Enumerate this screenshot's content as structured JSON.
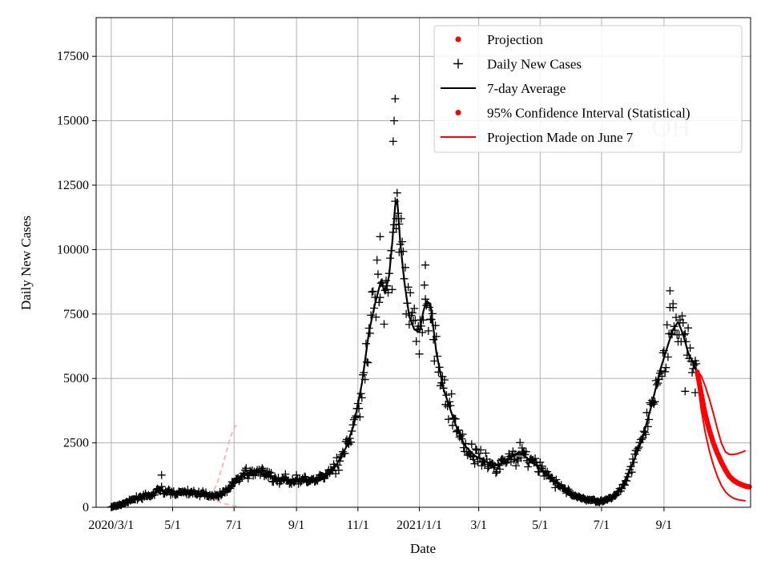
{
  "chart_data": {
    "type": "line",
    "xlabel": "Date",
    "ylabel": "Daily New Cases",
    "watermark": "OH",
    "x_range": [
      "2020-02-15",
      "2021-11-26"
    ],
    "ylim": [
      0,
      19000
    ],
    "yticks": [
      0,
      2500,
      5000,
      7500,
      10000,
      12500,
      15000,
      17500
    ],
    "xticks": [
      {
        "date": "2020-03-01",
        "label": "2020/3/1"
      },
      {
        "date": "2020-05-01",
        "label": "5/1"
      },
      {
        "date": "2020-07-01",
        "label": "7/1"
      },
      {
        "date": "2020-09-01",
        "label": "9/1"
      },
      {
        "date": "2020-11-01",
        "label": "11/1"
      },
      {
        "date": "2021-01-01",
        "label": "2021/1/1"
      },
      {
        "date": "2021-03-01",
        "label": "3/1"
      },
      {
        "date": "2021-05-01",
        "label": "5/1"
      },
      {
        "date": "2021-07-01",
        "label": "7/1"
      },
      {
        "date": "2021-09-01",
        "label": "9/1"
      }
    ],
    "grid": true,
    "legend_position": "top-right",
    "legend": [
      {
        "label": "Projection",
        "marker": "dot",
        "color": "#ff0000"
      },
      {
        "label": "Daily New Cases",
        "marker": "plus",
        "color": "#000000"
      },
      {
        "label": "7-day Average",
        "marker": "line",
        "color": "#000000"
      },
      {
        "label": "95% Confidence Interval (Statistical)",
        "marker": "dot",
        "color": "#ff0000"
      },
      {
        "label": "Projection Made on June 7",
        "marker": "line",
        "color": "#ff0000"
      }
    ],
    "seven_day_average": [
      [
        "2020-03-01",
        0
      ],
      [
        "2020-03-10",
        100
      ],
      [
        "2020-03-20",
        250
      ],
      [
        "2020-03-28",
        380
      ],
      [
        "2020-04-05",
        420
      ],
      [
        "2020-04-12",
        480
      ],
      [
        "2020-04-18",
        750
      ],
      [
        "2020-04-24",
        600
      ],
      [
        "2020-05-01",
        560
      ],
      [
        "2020-05-15",
        580
      ],
      [
        "2020-05-25",
        560
      ],
      [
        "2020-06-05",
        480
      ],
      [
        "2020-06-15",
        450
      ],
      [
        "2020-06-25",
        700
      ],
      [
        "2020-07-05",
        1100
      ],
      [
        "2020-07-12",
        1300
      ],
      [
        "2020-07-20",
        1380
      ],
      [
        "2020-07-28",
        1350
      ],
      [
        "2020-08-05",
        1200
      ],
      [
        "2020-08-15",
        1100
      ],
      [
        "2020-08-25",
        1000
      ],
      [
        "2020-09-01",
        1080
      ],
      [
        "2020-09-08",
        1050
      ],
      [
        "2020-09-20",
        1000
      ],
      [
        "2020-10-01",
        1200
      ],
      [
        "2020-10-10",
        1600
      ],
      [
        "2020-10-20",
        2300
      ],
      [
        "2020-10-28",
        3200
      ],
      [
        "2020-11-05",
        4800
      ],
      [
        "2020-11-12",
        6800
      ],
      [
        "2020-11-18",
        7900
      ],
      [
        "2020-11-22",
        8500
      ],
      [
        "2020-11-24",
        8800
      ],
      [
        "2020-11-28",
        8300
      ],
      [
        "2020-12-02",
        9000
      ],
      [
        "2020-12-05",
        10200
      ],
      [
        "2020-12-08",
        11700
      ],
      [
        "2020-12-10",
        11950
      ],
      [
        "2020-12-13",
        10300
      ],
      [
        "2020-12-17",
        8800
      ],
      [
        "2020-12-22",
        7400
      ],
      [
        "2020-12-27",
        6900
      ],
      [
        "2021-01-01",
        6800
      ],
      [
        "2021-01-05",
        7600
      ],
      [
        "2021-01-08",
        8000
      ],
      [
        "2021-01-12",
        7900
      ],
      [
        "2021-01-18",
        6000
      ],
      [
        "2021-01-25",
        4600
      ],
      [
        "2021-02-05",
        3300
      ],
      [
        "2021-02-15",
        2400
      ],
      [
        "2021-02-25",
        2000
      ],
      [
        "2021-03-05",
        1850
      ],
      [
        "2021-03-15",
        1600
      ],
      [
        "2021-03-25",
        1700
      ],
      [
        "2021-04-01",
        1900
      ],
      [
        "2021-04-10",
        2150
      ],
      [
        "2021-04-20",
        1850
      ],
      [
        "2021-05-01",
        1500
      ],
      [
        "2021-05-15",
        1000
      ],
      [
        "2021-06-01",
        500
      ],
      [
        "2021-06-15",
        300
      ],
      [
        "2021-07-01",
        230
      ],
      [
        "2021-07-10",
        320
      ],
      [
        "2021-07-20",
        700
      ],
      [
        "2021-08-01",
        1700
      ],
      [
        "2021-08-10",
        2600
      ],
      [
        "2021-08-20",
        4000
      ],
      [
        "2021-08-28",
        5300
      ],
      [
        "2021-09-05",
        6300
      ],
      [
        "2021-09-10",
        6900
      ],
      [
        "2021-09-15",
        7200
      ],
      [
        "2021-09-20",
        6700
      ],
      [
        "2021-09-25",
        6000
      ],
      [
        "2021-09-30",
        5600
      ],
      [
        "2021-10-03",
        5300
      ]
    ],
    "daily_peaks": [
      [
        "2020-04-20",
        1250
      ],
      [
        "2020-11-23",
        10500
      ],
      [
        "2020-12-06",
        14200
      ],
      [
        "2020-12-07",
        15000
      ],
      [
        "2020-12-08",
        15850
      ],
      [
        "2020-12-09",
        11200
      ],
      [
        "2020-12-12",
        9900
      ],
      [
        "2021-01-07",
        9400
      ],
      [
        "2021-09-07",
        8400
      ],
      [
        "2021-09-10",
        7900
      ],
      [
        "2021-09-22",
        4500
      ],
      [
        "2021-10-02",
        4450
      ]
    ],
    "projection_made_on_june_7": {
      "mean": [
        [
          "2020-06-07",
          400
        ],
        [
          "2020-06-10",
          420
        ],
        [
          "2020-06-12",
          450
        ]
      ],
      "upper": [
        [
          "2020-06-07",
          400
        ],
        [
          "2020-06-14",
          900
        ],
        [
          "2020-06-21",
          1800
        ],
        [
          "2020-06-28",
          2800
        ],
        [
          "2020-07-04",
          3300
        ]
      ],
      "lower": [
        [
          "2020-06-07",
          400
        ],
        [
          "2020-06-14",
          250
        ],
        [
          "2020-06-21",
          150
        ],
        [
          "2020-06-28",
          80
        ],
        [
          "2020-07-04",
          40
        ]
      ]
    },
    "projection": {
      "mean": [
        [
          "2021-10-04",
          5250
        ],
        [
          "2021-10-08",
          4400
        ],
        [
          "2021-10-12",
          3600
        ],
        [
          "2021-10-16",
          3000
        ],
        [
          "2021-10-20",
          2500
        ],
        [
          "2021-10-24",
          2100
        ],
        [
          "2021-10-28",
          1750
        ],
        [
          "2021-11-01",
          1450
        ],
        [
          "2021-11-05",
          1200
        ],
        [
          "2021-11-09",
          1050
        ],
        [
          "2021-11-13",
          950
        ],
        [
          "2021-11-17",
          880
        ],
        [
          "2021-11-21",
          820
        ],
        [
          "2021-11-25",
          790
        ]
      ],
      "upper": [
        [
          "2021-10-04",
          5300
        ],
        [
          "2021-10-08",
          5100
        ],
        [
          "2021-10-12",
          4700
        ],
        [
          "2021-10-16",
          4200
        ],
        [
          "2021-10-20",
          3650
        ],
        [
          "2021-10-24",
          3050
        ],
        [
          "2021-10-28",
          2500
        ],
        [
          "2021-11-01",
          2150
        ],
        [
          "2021-11-05",
          2050
        ],
        [
          "2021-11-09",
          2050
        ],
        [
          "2021-11-13",
          2080
        ],
        [
          "2021-11-17",
          2130
        ],
        [
          "2021-11-21",
          2200
        ]
      ],
      "lower": [
        [
          "2021-10-04",
          5000
        ],
        [
          "2021-10-08",
          3800
        ],
        [
          "2021-10-12",
          2900
        ],
        [
          "2021-10-16",
          2200
        ],
        [
          "2021-10-20",
          1650
        ],
        [
          "2021-10-24",
          1200
        ],
        [
          "2021-10-28",
          850
        ],
        [
          "2021-11-01",
          600
        ],
        [
          "2021-11-05",
          450
        ],
        [
          "2021-11-09",
          350
        ],
        [
          "2021-11-13",
          300
        ],
        [
          "2021-11-17",
          270
        ],
        [
          "2021-11-21",
          250
        ]
      ]
    }
  }
}
